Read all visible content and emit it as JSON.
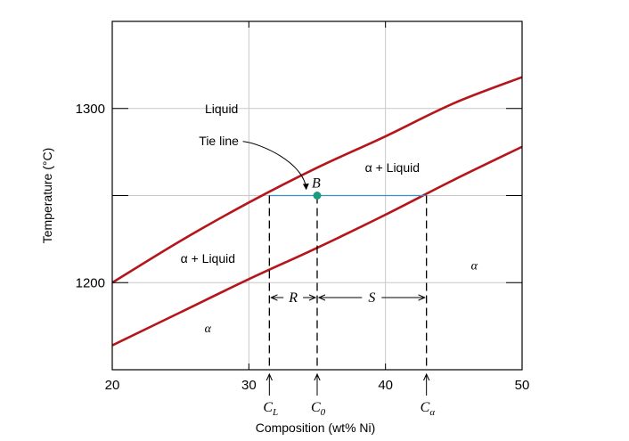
{
  "chart_data": {
    "type": "line",
    "xlabel": "Composition (wt% Ni)",
    "ylabel": "Temperature (°C)",
    "xlim": [
      20,
      50
    ],
    "ylim": [
      1150,
      1350
    ],
    "x_ticks": [
      "20",
      "30",
      "40",
      "50"
    ],
    "y_ticks": [
      "1200",
      "1300"
    ],
    "grid": true,
    "series": [
      {
        "name": "",
        "role": "liquidus",
        "x": [
          20,
          25,
          30,
          35,
          40,
          45,
          50
        ],
        "y": [
          1200,
          1224,
          1246,
          1266,
          1284,
          1303,
          1318
        ]
      },
      {
        "name": "",
        "role": "solidus",
        "x": [
          20,
          25,
          30,
          35,
          40,
          45,
          50
        ],
        "y": [
          1164,
          1183,
          1202,
          1220,
          1239,
          1259,
          1278
        ]
      }
    ],
    "tie_line": {
      "y": 1250,
      "x_start": 31.5,
      "x_end": 43
    },
    "point": {
      "label": "B",
      "x": 35,
      "y": 1250,
      "color": "#1a9b7a"
    },
    "markers": [
      {
        "label": "C",
        "sub": "L",
        "x": 31.5
      },
      {
        "label": "C",
        "sub": "0",
        "x": 35
      },
      {
        "label": "C",
        "sub": "α",
        "x": 43
      }
    ],
    "lever_arms": [
      {
        "label": "R",
        "x_start": 31.5,
        "x_end": 35
      },
      {
        "label": "S",
        "x_start": 35,
        "x_end": 43
      }
    ],
    "regions": [
      {
        "text": "Liquid",
        "x": 28,
        "y": 1300
      },
      {
        "text": "α + Liquid",
        "x": 40.5,
        "y": 1266
      },
      {
        "text": "α + Liquid",
        "x": 27,
        "y": 1214
      },
      {
        "text": "α",
        "x": 46.5,
        "y": 1210
      },
      {
        "text": "α",
        "x": 27,
        "y": 1174
      }
    ],
    "annotation": {
      "text": "Tie line",
      "x": 27.8,
      "y": 1278,
      "arrow_to": [
        34.2,
        1251
      ]
    },
    "colors": {
      "phase_boundary": "#b5151b",
      "tie_line": "#3e8fc9",
      "grid": "#c8c8c8",
      "axis": "#000000"
    }
  }
}
